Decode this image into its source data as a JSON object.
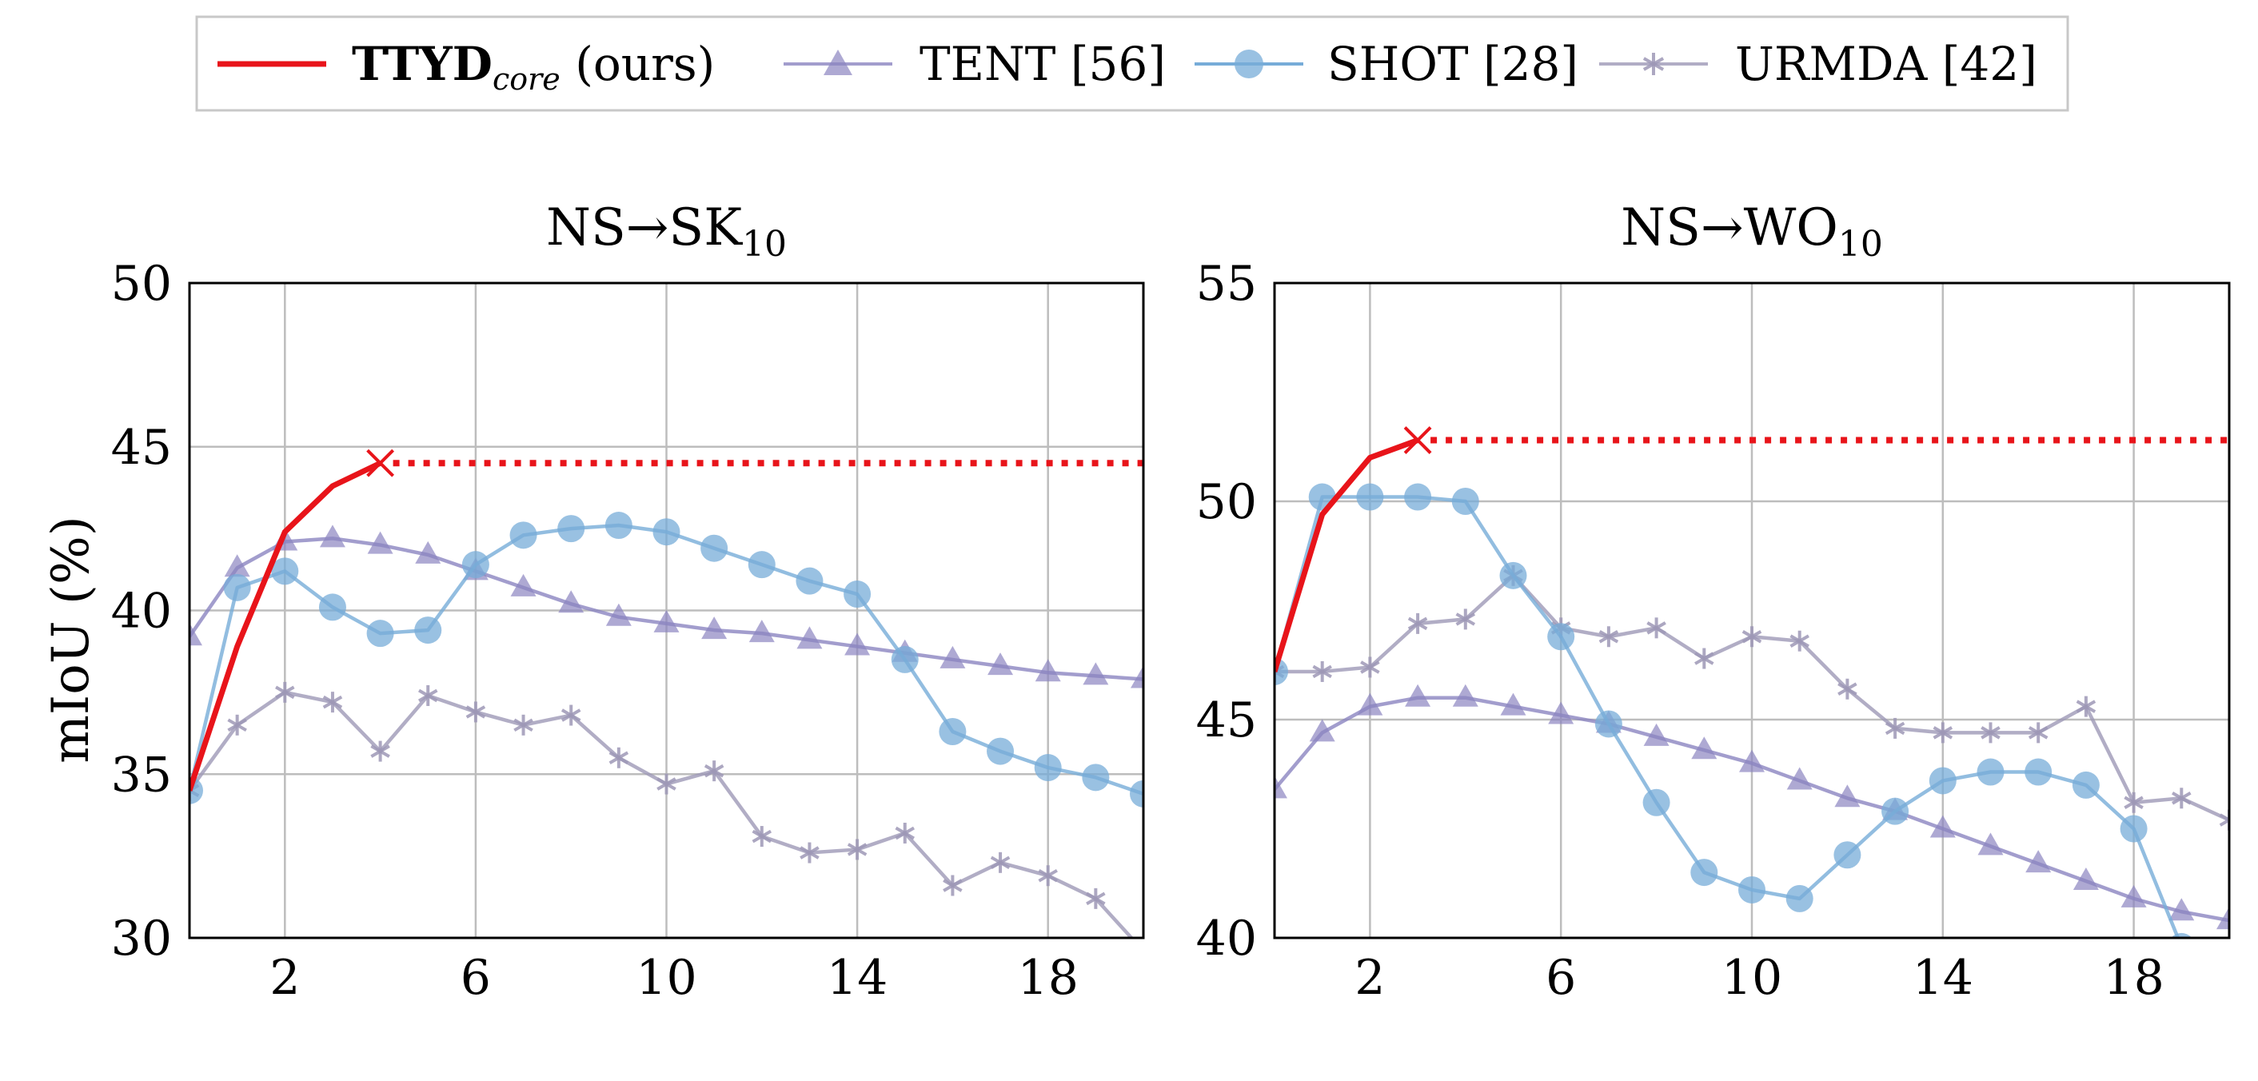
{
  "legend": [
    {
      "key": "ttyd",
      "name_main": "TTYD",
      "name_sub": "core",
      "name_rest": " (ours)",
      "color": "#e8141a"
    },
    {
      "key": "tent",
      "name_main": "TENT [56]",
      "color": "#8b84c0"
    },
    {
      "key": "shot",
      "name_main": "SHOT [28]",
      "color": "#77acd8"
    },
    {
      "key": "urmda",
      "name_main": "URMDA [42]",
      "color": "#9d98b6"
    }
  ],
  "ylabel": "mIoU (%)",
  "chart_data": [
    {
      "type": "line",
      "title_main": "NS→SK",
      "title_sub": "10",
      "xlabel": "",
      "ylabel": "mIoU (%)",
      "xlim": [
        0,
        20
      ],
      "ylim": [
        30,
        50
      ],
      "xticks": [
        2,
        6,
        10,
        14,
        18
      ],
      "yticks": [
        30,
        35,
        40,
        45,
        50
      ],
      "grid": true,
      "series": [
        {
          "key": "ttyd",
          "name": "TTYDcore (ours)",
          "x": [
            0,
            1,
            2,
            3,
            4
          ],
          "y": [
            34.5,
            38.9,
            42.4,
            43.8,
            44.5
          ],
          "stop_x": 4,
          "stop_y": 44.5,
          "continue_to": 20,
          "continue_y": 44.5
        },
        {
          "key": "tent",
          "name": "TENT [56]",
          "x": [
            0,
            1,
            2,
            3,
            4,
            5,
            6,
            7,
            8,
            9,
            10,
            11,
            12,
            13,
            14,
            15,
            16,
            17,
            18,
            19,
            20
          ],
          "y": [
            39.2,
            41.3,
            42.1,
            42.2,
            42.0,
            41.7,
            41.2,
            40.7,
            40.2,
            39.8,
            39.6,
            39.4,
            39.3,
            39.1,
            38.9,
            38.7,
            38.5,
            38.3,
            38.1,
            38.0,
            37.9
          ]
        },
        {
          "key": "shot",
          "name": "SHOT [28]",
          "x": [
            0,
            1,
            2,
            3,
            4,
            5,
            6,
            7,
            8,
            9,
            10,
            11,
            12,
            13,
            14,
            15,
            16,
            17,
            18,
            19,
            20
          ],
          "y": [
            34.5,
            40.7,
            41.2,
            40.1,
            39.3,
            39.4,
            41.4,
            42.3,
            42.5,
            42.6,
            42.4,
            41.9,
            41.4,
            40.9,
            40.5,
            38.5,
            36.3,
            35.7,
            35.2,
            34.9,
            34.4
          ]
        },
        {
          "key": "urmda",
          "name": "URMDA [42]",
          "x": [
            0,
            1,
            2,
            3,
            4,
            5,
            6,
            7,
            8,
            9,
            10,
            11,
            12,
            13,
            14,
            15,
            16,
            17,
            18,
            19,
            20
          ],
          "y": [
            34.5,
            36.5,
            37.5,
            37.2,
            35.7,
            37.4,
            36.9,
            36.5,
            36.8,
            35.5,
            34.7,
            35.1,
            33.1,
            32.6,
            32.7,
            33.2,
            31.6,
            32.3,
            31.9,
            31.2,
            29.6
          ]
        }
      ]
    },
    {
      "type": "line",
      "title_main": "NS→WO",
      "title_sub": "10",
      "xlabel": "",
      "ylabel": "",
      "xlim": [
        0,
        20
      ],
      "ylim": [
        40,
        55
      ],
      "xticks": [
        2,
        6,
        10,
        14,
        18
      ],
      "yticks": [
        40,
        45,
        50,
        55
      ],
      "grid": true,
      "series": [
        {
          "key": "ttyd",
          "name": "TTYDcore (ours)",
          "x": [
            0,
            1,
            2,
            3
          ],
          "y": [
            46.1,
            49.7,
            51.0,
            51.4
          ],
          "stop_x": 3,
          "stop_y": 51.4,
          "continue_to": 20,
          "continue_y": 51.4
        },
        {
          "key": "tent",
          "name": "TENT [56]",
          "x": [
            0,
            1,
            2,
            3,
            4,
            5,
            6,
            7,
            8,
            9,
            10,
            11,
            12,
            13,
            14,
            15,
            16,
            17,
            18,
            19,
            20
          ],
          "y": [
            43.4,
            44.7,
            45.3,
            45.5,
            45.5,
            45.3,
            45.1,
            44.9,
            44.6,
            44.3,
            44.0,
            43.6,
            43.2,
            42.9,
            42.5,
            42.1,
            41.7,
            41.3,
            40.9,
            40.6,
            40.4
          ]
        },
        {
          "key": "shot",
          "name": "SHOT [28]",
          "x": [
            0,
            1,
            2,
            3,
            4,
            5,
            6,
            7,
            8,
            9,
            10,
            11,
            12,
            13,
            14,
            15,
            16,
            17,
            18,
            19
          ],
          "y": [
            46.1,
            50.1,
            50.1,
            50.1,
            50.0,
            48.3,
            46.9,
            44.9,
            43.1,
            41.5,
            41.1,
            40.9,
            41.9,
            42.9,
            43.6,
            43.8,
            43.8,
            43.5,
            42.5,
            39.8
          ]
        },
        {
          "key": "urmda",
          "name": "URMDA [42]",
          "x": [
            0,
            1,
            2,
            3,
            4,
            5,
            6,
            7,
            8,
            9,
            10,
            11,
            12,
            13,
            14,
            15,
            16,
            17,
            18,
            19,
            20
          ],
          "y": [
            46.1,
            46.1,
            46.2,
            47.2,
            47.3,
            48.3,
            47.1,
            46.9,
            47.1,
            46.4,
            46.9,
            46.8,
            45.7,
            44.8,
            44.7,
            44.7,
            44.7,
            45.3,
            43.1,
            43.2,
            42.7
          ]
        }
      ]
    }
  ]
}
